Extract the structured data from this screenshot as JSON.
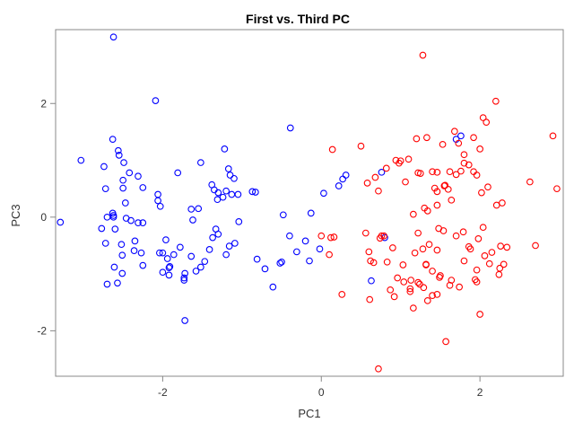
{
  "chart_data": {
    "type": "scatter",
    "title": "First vs. Third PC",
    "xlabel": "PC1",
    "ylabel": "PC3",
    "xlim": [
      -3.35,
      3.05
    ],
    "ylim": [
      -2.8,
      3.3
    ],
    "xticks": [
      -2,
      0,
      2
    ],
    "yticks": [
      -2,
      0,
      2
    ],
    "xtick_labels": [
      "-2",
      "0",
      "2"
    ],
    "ytick_labels": [
      "-2",
      "0",
      "2"
    ],
    "grid": false,
    "legend": "none",
    "series": [
      {
        "color": "#0000ff",
        "x": [
          -2.62,
          -2.09,
          -3.29,
          -3.03,
          -2.74,
          -2.63,
          -2.56,
          -2.55,
          -2.49,
          -2.42,
          -2.31,
          -2.72,
          -2.7,
          -2.5,
          -2.47,
          -2.62,
          -2.62,
          -2.6,
          -2.4,
          -2.25,
          -2.35,
          -2.52,
          -2.51,
          -2.27,
          -2.36,
          -2.61,
          -2.77,
          -2.72,
          -2.51,
          -2.7,
          -2.57,
          -2.46,
          -2.31,
          -2.25,
          -2.25,
          -2.06,
          -2.06,
          -2.03,
          -2.0,
          -2.04,
          -2.0,
          -1.96,
          -1.94,
          -1.91,
          -1.92,
          -1.92,
          -1.86,
          -1.81,
          -1.78,
          -1.73,
          -1.72,
          -1.72,
          -1.64,
          -1.62,
          -1.55,
          -1.52,
          -1.47,
          -1.41,
          -1.38,
          -1.35,
          -1.3,
          -1.31,
          -1.24,
          -1.22,
          -1.2,
          -1.17,
          -1.15,
          -1.13,
          -1.1,
          -1.09,
          -1.04,
          -1.2,
          -1.33,
          -1.37,
          -1.52,
          -1.58,
          -0.87,
          -0.83,
          -0.81,
          -0.71,
          -0.61,
          -0.52,
          -0.5,
          -0.48,
          -0.39,
          -0.31,
          -0.2,
          -0.15,
          -0.13,
          -0.02,
          0.03,
          -0.4,
          -1.73,
          0.22,
          0.27,
          0.31,
          0.63,
          0.76,
          0.8,
          1.7,
          1.76,
          -2.5,
          -2.63,
          -1.05,
          -1.16,
          -1.3,
          -1.64
        ],
        "y": [
          3.17,
          2.05,
          -0.09,
          1.0,
          0.89,
          1.37,
          1.17,
          1.09,
          0.96,
          0.78,
          0.72,
          0.5,
          0.0,
          0.51,
          0.25,
          0.03,
          0.0,
          -0.21,
          -0.06,
          -0.1,
          -0.42,
          -0.48,
          -0.67,
          -0.63,
          -0.59,
          -0.88,
          -0.2,
          -0.46,
          -0.99,
          -1.18,
          -1.16,
          -0.02,
          -0.1,
          -0.85,
          0.52,
          0.4,
          0.29,
          0.19,
          -0.97,
          -0.63,
          -0.63,
          -0.4,
          -0.73,
          -0.87,
          -0.89,
          -1.02,
          -0.66,
          0.78,
          -0.53,
          -1.07,
          -0.99,
          -1.82,
          -0.69,
          -0.05,
          0.15,
          0.96,
          -0.78,
          -0.57,
          0.57,
          0.48,
          0.43,
          0.31,
          0.35,
          1.2,
          0.46,
          0.85,
          0.74,
          0.4,
          0.68,
          -0.46,
          -0.08,
          -0.66,
          -0.21,
          -0.36,
          -0.88,
          -0.95,
          0.45,
          0.44,
          -0.74,
          -0.91,
          -1.23,
          -0.81,
          -0.79,
          0.04,
          1.57,
          -0.61,
          -0.42,
          -0.77,
          0.07,
          -0.56,
          0.42,
          -0.33,
          -1.11,
          0.55,
          0.67,
          0.74,
          -1.12,
          0.79,
          -0.36,
          1.37,
          1.43,
          0.65,
          0.07,
          0.4,
          -0.51,
          -0.3,
          0.14
        ]
      },
      {
        "color": "#ff0000",
        "x": [
          1.28,
          0.14,
          0.5,
          0.58,
          0.68,
          0.72,
          0.82,
          0.94,
          0.98,
          1.06,
          1.0,
          1.1,
          1.2,
          1.22,
          1.25,
          1.33,
          1.4,
          1.46,
          1.53,
          1.62,
          1.55,
          1.68,
          1.73,
          1.8,
          1.86,
          1.92,
          2.0,
          2.04,
          2.08,
          2.2,
          1.43,
          1.46,
          1.56,
          1.6,
          1.64,
          1.7,
          1.76,
          1.8,
          1.92,
          1.96,
          2.02,
          2.1,
          2.21,
          2.28,
          2.63,
          2.92,
          2.97,
          0.61,
          0.62,
          0.66,
          0.76,
          0.9,
          0.96,
          1.04,
          1.12,
          1.18,
          1.22,
          1.28,
          1.32,
          1.4,
          1.46,
          1.49,
          1.54,
          1.62,
          1.7,
          1.8,
          1.86,
          1.94,
          1.98,
          2.06,
          2.12,
          2.24,
          2.34,
          2.7,
          0.72,
          0.79,
          0.83,
          0.87,
          0.92,
          1.03,
          1.13,
          1.16,
          1.24,
          1.29,
          1.34,
          1.4,
          1.46,
          1.5,
          1.57,
          1.64,
          1.74,
          1.79,
          1.88,
          1.96,
          2.04,
          2.15,
          2.25,
          0.26,
          0.1,
          0.74,
          1.34,
          1.16,
          1.3,
          2.26,
          2.3,
          0.56,
          0.12,
          1.12,
          1.46,
          1.32,
          0.16,
          0.0,
          2.0,
          1.22,
          1.36,
          0.6,
          1.48,
          1.96
        ],
        "y": [
          2.85,
          1.19,
          1.25,
          0.6,
          0.7,
          0.46,
          0.86,
          1.0,
          0.95,
          0.62,
          0.99,
          1.02,
          1.38,
          0.78,
          0.77,
          1.4,
          0.8,
          0.79,
          1.28,
          0.8,
          0.55,
          1.51,
          1.3,
          1.1,
          0.92,
          0.8,
          1.2,
          1.75,
          1.67,
          2.04,
          0.51,
          0.45,
          0.56,
          0.49,
          0.3,
          0.75,
          0.81,
          0.95,
          1.4,
          0.74,
          0.43,
          0.53,
          0.21,
          0.25,
          0.62,
          1.43,
          0.5,
          -1.45,
          -0.77,
          -0.8,
          -0.33,
          -0.54,
          -1.07,
          -1.14,
          -1.31,
          -0.63,
          -1.15,
          -0.56,
          -0.83,
          -1.38,
          -0.58,
          -1.06,
          -0.24,
          -1.2,
          -0.33,
          -0.77,
          -0.52,
          -1.1,
          -0.38,
          -0.68,
          -0.82,
          -1.01,
          -0.53,
          -0.5,
          -2.67,
          -0.33,
          -0.79,
          -1.28,
          -1.4,
          -0.84,
          -1.11,
          -1.6,
          -1.18,
          -1.24,
          -1.47,
          -0.95,
          -1.36,
          -1.03,
          -2.19,
          -1.11,
          -1.23,
          -0.26,
          -0.56,
          -1.14,
          -0.18,
          -0.62,
          -0.9,
          -1.36,
          -0.66,
          -0.37,
          0.11,
          0.05,
          0.16,
          -0.51,
          -0.83,
          -0.28,
          -0.36,
          -1.26,
          0.21,
          -0.84,
          -0.35,
          -0.33,
          -1.71,
          -0.28,
          -0.48,
          -0.61,
          -0.2,
          -0.93
        ]
      }
    ]
  }
}
